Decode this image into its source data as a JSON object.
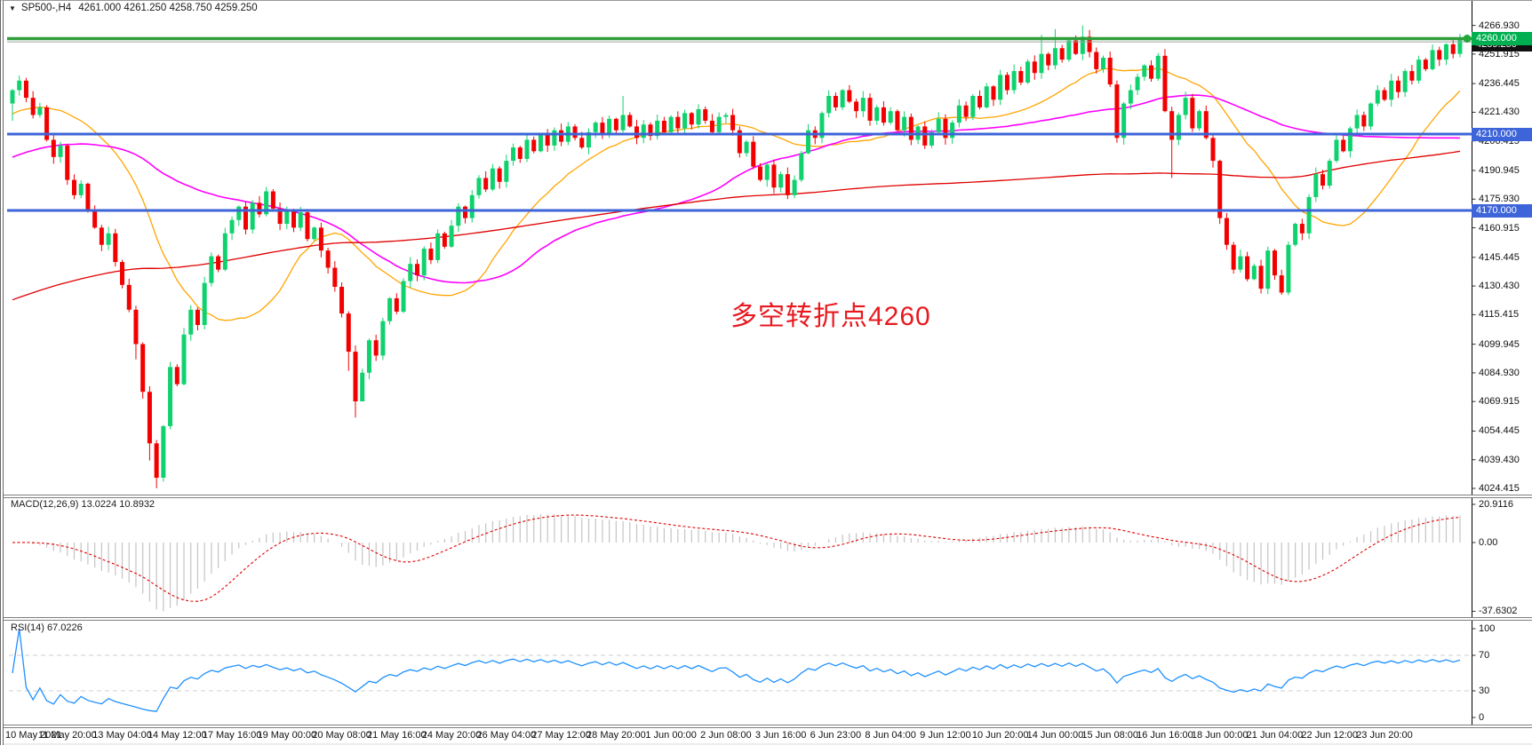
{
  "header": {
    "symbol_period": "SP500-,H4",
    "ohlc": "4261.000 4261.250 4258.750 4259.250"
  },
  "icons": {
    "collapse_arrow": "▼"
  },
  "chart_data": {
    "type": "candlestick",
    "symbol": "SP500-",
    "timeframe": "H4",
    "title": "SP500-,H4  4261.000 4261.250 4258.750 4259.250",
    "price_axis_labels": [
      "4266.930",
      "4251.915",
      "4236.445",
      "4221.430",
      "4206.415",
      "4190.945",
      "4175.930",
      "4160.915",
      "4145.445",
      "4130.430",
      "4115.415",
      "4099.945",
      "4084.930",
      "4069.915",
      "4054.445",
      "4039.430",
      "4024.415"
    ],
    "hlines": [
      {
        "price": 4260.0,
        "tag": "4260.000",
        "color": "#2f9e3a",
        "tag_bg": "#00b050"
      },
      {
        "price": 4210.0,
        "tag": "4210.000",
        "color": "#3d64d8",
        "tag_bg": "#3d64d8"
      },
      {
        "price": 4170.0,
        "tag": "4170.000",
        "color": "#3d64d8",
        "tag_bg": "#3d64d8"
      }
    ],
    "current_price": {
      "value": 4259.25,
      "tag": "4259.250",
      "line_color": "#a0a0a0",
      "tag_bg": "#111111"
    },
    "time_axis": [
      "10 May 2021",
      "11 May 20:00",
      "13 May 04:00",
      "14 May 12:00",
      "17 May 16:00",
      "19 May 00:00",
      "20 May 08:00",
      "21 May 16:00",
      "24 May 20:00",
      "26 May 04:00",
      "27 May 12:00",
      "28 May 20:00",
      "1 Jun 00:00",
      "2 Jun 08:00",
      "3 Jun 16:00",
      "6 Jun 23:00",
      "8 Jun 04:00",
      "9 Jun 12:00",
      "10 Jun 20:00",
      "14 Jun 00:00",
      "15 Jun 08:00",
      "16 Jun 16:00",
      "18 Jun 00:00",
      "21 Jun 04:00",
      "22 Jun 12:00",
      "23 Jun 20:00"
    ],
    "candles": {
      "open_first": 4226,
      "closes": [
        4233,
        4238,
        4229,
        4220,
        4224,
        4207,
        4198,
        4204,
        4186,
        4178,
        4184,
        4170,
        4161,
        4152,
        4158,
        4143,
        4131,
        4118,
        4100,
        4075,
        4048,
        4030,
        4057,
        4088,
        4079,
        4105,
        4118,
        4110,
        4132,
        4146,
        4139,
        4158,
        4165,
        4172,
        4160,
        4174,
        4168,
        4180,
        4171,
        4163,
        4170,
        4161,
        4169,
        4155,
        4161,
        4149,
        4140,
        4130,
        4116,
        4096,
        4070,
        4085,
        4102,
        4094,
        4112,
        4124,
        4117,
        4133,
        4142,
        4136,
        4150,
        4144,
        4158,
        4151,
        4162,
        4172,
        4166,
        4178,
        4187,
        4181,
        4192,
        4185,
        4196,
        4203,
        4197,
        4207,
        4201,
        4210,
        4204,
        4212,
        4206,
        4214,
        4208,
        4203,
        4211,
        4216,
        4210,
        4218,
        4212,
        4220,
        4214,
        4208,
        4215,
        4209,
        4217,
        4211,
        4219,
        4213,
        4221,
        4215,
        4223,
        4217,
        4211,
        4219,
        4220,
        4212,
        4200,
        4206,
        4193,
        4186,
        4194,
        4182,
        4189,
        4178,
        4186,
        4200,
        4212,
        4208,
        4221,
        4230,
        4224,
        4233,
        4227,
        4222,
        4229,
        4217,
        4224,
        4216,
        4222,
        4212,
        4219,
        4207,
        4214,
        4204,
        4211,
        4218,
        4208,
        4216,
        4225,
        4219,
        4230,
        4224,
        4235,
        4228,
        4241,
        4233,
        4243,
        4237,
        4248,
        4242,
        4252,
        4246,
        4255,
        4249,
        4259,
        4252,
        4261,
        4253,
        4244,
        4250,
        4236,
        4208,
        4226,
        4233,
        4240,
        4246,
        4239,
        4251,
        4222,
        4207,
        4220,
        4229,
        4213,
        4222,
        4208,
        4196,
        4166,
        4152,
        4139,
        4146,
        4134,
        4141,
        4129,
        4149,
        4136,
        4127,
        4152,
        4163,
        4158,
        4177,
        4189,
        4183,
        4196,
        4207,
        4201,
        4213,
        4220,
        4214,
        4226,
        4233,
        4228,
        4238,
        4232,
        4243,
        4238,
        4249,
        4244,
        4254,
        4249,
        4257,
        4252,
        4259.25
      ],
      "wick_overrides": {
        "0": {
          "low": 4217
        },
        "18": {
          "low": 4092
        },
        "20": {
          "low": 4039
        },
        "21": {
          "low": 4024.5
        },
        "22": {
          "low": 4028
        },
        "49": {
          "low": 4086
        },
        "50": {
          "low": 4061.5
        },
        "51": {
          "low": 4072
        },
        "89": {
          "high": 4230
        },
        "150": {
          "high": 4262
        },
        "152": {
          "high": 4265
        },
        "156": {
          "high": 4266.9
        },
        "161": {
          "low": 4205.5
        },
        "169": {
          "low": 4187
        },
        "182": {
          "low": 4126.5
        },
        "185": {
          "low": 4125.8
        },
        "211": {
          "high": 4262.5
        }
      },
      "up_color": "#0fd26e",
      "down_color": "#f20000"
    },
    "moving_averages": [
      {
        "name": "ma-fast",
        "window": 20,
        "color": "#ffa500"
      },
      {
        "name": "ma-mid",
        "window": 55,
        "color": "#ff00ff"
      },
      {
        "name": "ma-slow",
        "window": 170,
        "color": "#e00000"
      }
    ],
    "indicators": {
      "macd": {
        "label": "MACD(12,26,9) 13.0224 10.8932",
        "params": [
          12,
          26,
          9
        ],
        "axis_labels": [
          "20.9116",
          "0.00",
          "-37.6302"
        ],
        "axis_values": [
          20.9116,
          0.0,
          -37.6302
        ],
        "histogram_color": "#c4c4c4",
        "signal_color": "#e00000"
      },
      "rsi": {
        "label": "RSI(14) 67.0226",
        "period": 14,
        "axis_labels": [
          "100",
          "70",
          "30",
          "0"
        ],
        "axis_values": [
          100,
          70,
          30,
          0
        ],
        "levels": [
          70,
          30
        ],
        "line_color": "#1e90ff"
      }
    },
    "annotation": {
      "text": "多空转折点4260",
      "color": "#e7191f"
    }
  }
}
